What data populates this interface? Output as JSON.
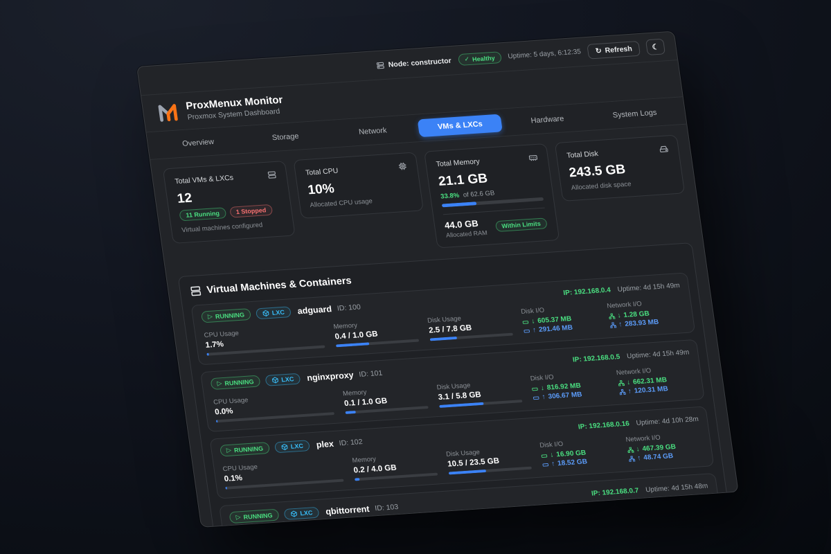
{
  "topbar": {
    "node_label": "Node: constructor",
    "health_label": "Healthy",
    "uptime_label": "Uptime: 5 days, 6:12:35",
    "refresh_label": "Refresh"
  },
  "icons": {
    "moon": "☾",
    "refresh": "↻",
    "check": "✓",
    "play": "▷",
    "arrow_down": "↓",
    "arrow_up": "↑"
  },
  "colors": {
    "accent_blue": "#3b82f6",
    "status_green": "#4ade80",
    "status_red": "#f87171",
    "lxc_cyan": "#38bdf8",
    "logo_orange": "#f97316"
  },
  "brand": {
    "title": "ProxMenux Monitor",
    "subtitle": "Proxmox System Dashboard"
  },
  "tabs": {
    "active": "VMs & LXCs",
    "items": [
      {
        "label": "Overview"
      },
      {
        "label": "Storage"
      },
      {
        "label": "Network"
      },
      {
        "label": "VMs & LXCs"
      },
      {
        "label": "Hardware"
      },
      {
        "label": "System Logs"
      }
    ]
  },
  "cards": {
    "vms": {
      "title": "Total VMs & LXCs",
      "value": "12",
      "running_badge": "11 Running",
      "stopped_badge": "1 Stopped",
      "subtitle": "Virtual machines configured"
    },
    "cpu": {
      "title": "Total CPU",
      "value": "10%",
      "subtitle": "Allocated CPU usage"
    },
    "memory": {
      "title": "Total Memory",
      "value": "21.1 GB",
      "pct_text": "33.8%",
      "of_text": "of 62.6 GB",
      "pct": 33.8,
      "alloc_value": "44.0 GB",
      "alloc_label": "Allocated RAM",
      "limit_badge": "Within Limits"
    },
    "disk": {
      "title": "Total Disk",
      "value": "243.5 GB",
      "subtitle": "Allocated disk space"
    }
  },
  "section": {
    "title": "Virtual Machines & Containers"
  },
  "labels": {
    "running": "RUNNING",
    "lxc": "LXC",
    "cpu": "CPU Usage",
    "memory": "Memory",
    "disk": "Disk Usage",
    "disk_io": "Disk I/O",
    "net_io": "Network I/O"
  },
  "vms": {
    "rows": [
      {
        "name": "adguard",
        "id": "ID: 100",
        "ip": "IP: 192.168.0.4",
        "uptime": "Uptime: 4d 15h 49m",
        "cpu": "1.7%",
        "cpu_pct": 2,
        "mem": "0.4 / 1.0 GB",
        "mem_pct": 40,
        "disk": "2.5 / 7.8 GB",
        "disk_pct": 32,
        "disk_down": "605.37 MB",
        "disk_up": "291.46 MB",
        "net_down": "1.28 GB",
        "net_up": "283.93 MB"
      },
      {
        "name": "nginxproxy",
        "id": "ID: 101",
        "ip": "IP: 192.168.0.5",
        "uptime": "Uptime: 4d 15h 49m",
        "cpu": "0.0%",
        "cpu_pct": 1,
        "mem": "0.1 / 1.0 GB",
        "mem_pct": 12,
        "disk": "3.1 / 5.8 GB",
        "disk_pct": 53,
        "disk_down": "816.92 MB",
        "disk_up": "306.67 MB",
        "net_down": "662.31 MB",
        "net_up": "120.31 MB"
      },
      {
        "name": "plex",
        "id": "ID: 102",
        "ip": "IP: 192.168.0.16",
        "uptime": "Uptime: 4d 10h 28m",
        "cpu": "0.1%",
        "cpu_pct": 1,
        "mem": "0.2 / 4.0 GB",
        "mem_pct": 6,
        "disk": "10.5 / 23.5 GB",
        "disk_pct": 45,
        "disk_down": "16.90 GB",
        "disk_up": "18.52 GB",
        "net_down": "467.39 GB",
        "net_up": "48.74 GB"
      },
      {
        "name": "qbittorrent",
        "id": "ID: 103",
        "ip": "IP: 192.168.0.7",
        "uptime": "Uptime: 4d 15h 48m"
      }
    ]
  }
}
